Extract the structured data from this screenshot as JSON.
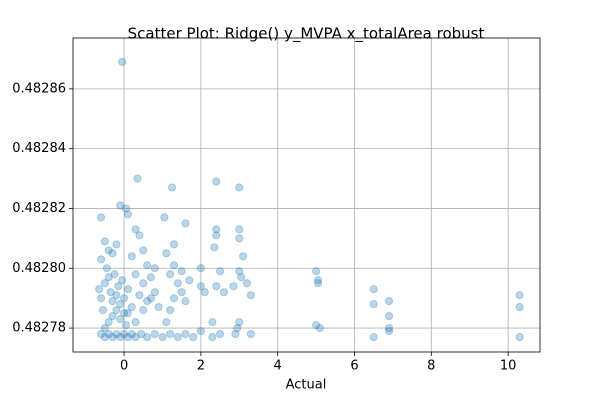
{
  "chart_data": {
    "type": "scatter",
    "title": "Scatter Plot: Ridge() y_MVPA x_totalArea robust",
    "x_label": "Actual",
    "color": "#1f77b4",
    "grid": true,
    "xlim": [
      -1.33,
      10.83
    ],
    "xticks": [
      0,
      2,
      4,
      6,
      8,
      10
    ],
    "ylim": [
      0.482772,
      0.482877
    ],
    "yticks": [
      0.48278,
      {
        "value": 0.4828,
        "label": "0.48280"
      },
      0.48282,
      0.48284,
      0.48286
    ],
    "x": [
      -0.6,
      -0.5,
      -0.4,
      -0.3,
      -0.2,
      -0.1,
      0,
      0.1,
      0.2,
      0.3,
      0.45,
      0.6,
      0.8,
      1.0,
      1.2,
      1.4,
      1.6,
      1.8,
      2.0,
      2.3,
      2.5,
      2.9,
      3.3,
      2.95,
      3.0,
      -0.5,
      -0.4,
      -0.3,
      -0.2,
      -0.1,
      0,
      -0.35,
      -0.15,
      -0.05,
      -0.25,
      -0.45,
      0.05,
      0.1,
      -0.55,
      -0.6,
      -0.65,
      -0.5,
      -0.4,
      -0.3,
      -0.2,
      -0.1,
      0,
      0.1,
      0.2,
      0.3,
      0.4,
      0.5,
      0.6,
      0.7,
      0.8,
      0.5,
      0.3,
      0.6,
      0.7,
      0.9,
      1.1,
      1.2,
      1.3,
      1.5,
      1.6,
      1.4,
      1.2,
      1.3,
      1.1,
      1.5,
      1.7,
      -0.6,
      -0.5,
      -0.4,
      -0.3,
      -0.2,
      -0.1,
      0.05,
      0.1,
      0.3,
      0.4,
      0.2,
      -0.6,
      0.5,
      0.8,
      0.35,
      1.05,
      1.25,
      1.6,
      1.3,
      2.0,
      2.0,
      2.1,
      2.4,
      2.4,
      2.4,
      2.35,
      2.5,
      2.6,
      2.4,
      2.3,
      3.0,
      3.0,
      3.0,
      3.1,
      3.0,
      3.05,
      3.2,
      3.3,
      2.85,
      5.0,
      5.05,
      5.05,
      5.0,
      5.1,
      6.5,
      6.5,
      6.9,
      6.9,
      6.9,
      6.9,
      6.5,
      10.3,
      10.3,
      10.3,
      -0.05
    ],
    "y": [
      0.482778,
      0.482777,
      0.482778,
      0.482777,
      0.482778,
      0.482777,
      0.482778,
      0.482777,
      0.482778,
      0.482777,
      0.482778,
      0.482777,
      0.482778,
      0.482777,
      0.482778,
      0.482777,
      0.482778,
      0.482777,
      0.482779,
      0.482777,
      0.482778,
      0.482778,
      0.482778,
      0.48278,
      0.482782,
      0.48278,
      0.482782,
      0.482784,
      0.482786,
      0.482788,
      0.48279,
      0.482792,
      0.482794,
      0.482796,
      0.482798,
      0.4828,
      0.482781,
      0.482785,
      0.482786,
      0.48279,
      0.482793,
      0.482795,
      0.482797,
      0.482789,
      0.482791,
      0.482783,
      0.482785,
      0.482793,
      0.482787,
      0.482782,
      0.482791,
      0.482786,
      0.482789,
      0.48279,
      0.482792,
      0.482795,
      0.482798,
      0.482801,
      0.482797,
      0.482787,
      0.482782,
      0.482786,
      0.48279,
      0.482792,
      0.482789,
      0.482795,
      0.482798,
      0.482801,
      0.482805,
      0.482799,
      0.482796,
      0.482817,
      0.482809,
      0.482806,
      0.482805,
      0.482808,
      0.482821,
      0.48282,
      0.482818,
      0.482813,
      0.482811,
      0.482804,
      0.482803,
      0.482806,
      0.4828,
      0.48283,
      0.482817,
      0.482827,
      0.482815,
      0.482808,
      0.4828,
      0.482794,
      0.482792,
      0.482829,
      0.482813,
      0.482811,
      0.482807,
      0.482799,
      0.482792,
      0.482794,
      0.482782,
      0.482827,
      0.482813,
      0.48281,
      0.482804,
      0.482799,
      0.482797,
      0.482795,
      0.482791,
      0.482794,
      0.482799,
      0.482796,
      0.482795,
      0.482781,
      0.48278,
      0.482793,
      0.482788,
      0.482789,
      0.482784,
      0.48278,
      0.482779,
      0.482777,
      0.482791,
      0.482787,
      0.482777,
      0.482869
    ]
  }
}
